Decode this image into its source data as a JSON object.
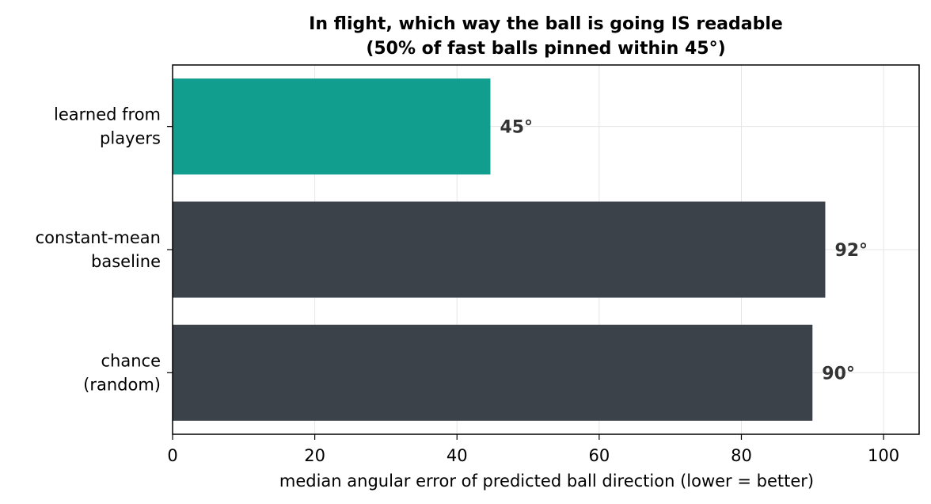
{
  "chart_data": {
    "type": "bar",
    "orientation": "horizontal",
    "title": [
      "In flight, which way the ball is going IS readable",
      "(50% of fast balls pinned within 45°)"
    ],
    "xlabel": "median angular error of predicted ball direction (lower = better)",
    "ylabel": "",
    "xlim": [
      0,
      105
    ],
    "xticks": [
      0,
      20,
      40,
      60,
      80,
      100
    ],
    "grid": true,
    "categories": [
      [
        "learned from",
        "players"
      ],
      [
        "constant-mean",
        "baseline"
      ],
      [
        "chance",
        "(random)"
      ]
    ],
    "values": [
      44.7,
      91.8,
      90.0
    ],
    "value_labels": [
      "45°",
      "92°",
      "90°"
    ],
    "colors": [
      "#119e8f",
      "#3c424a",
      "#3c424a"
    ]
  }
}
